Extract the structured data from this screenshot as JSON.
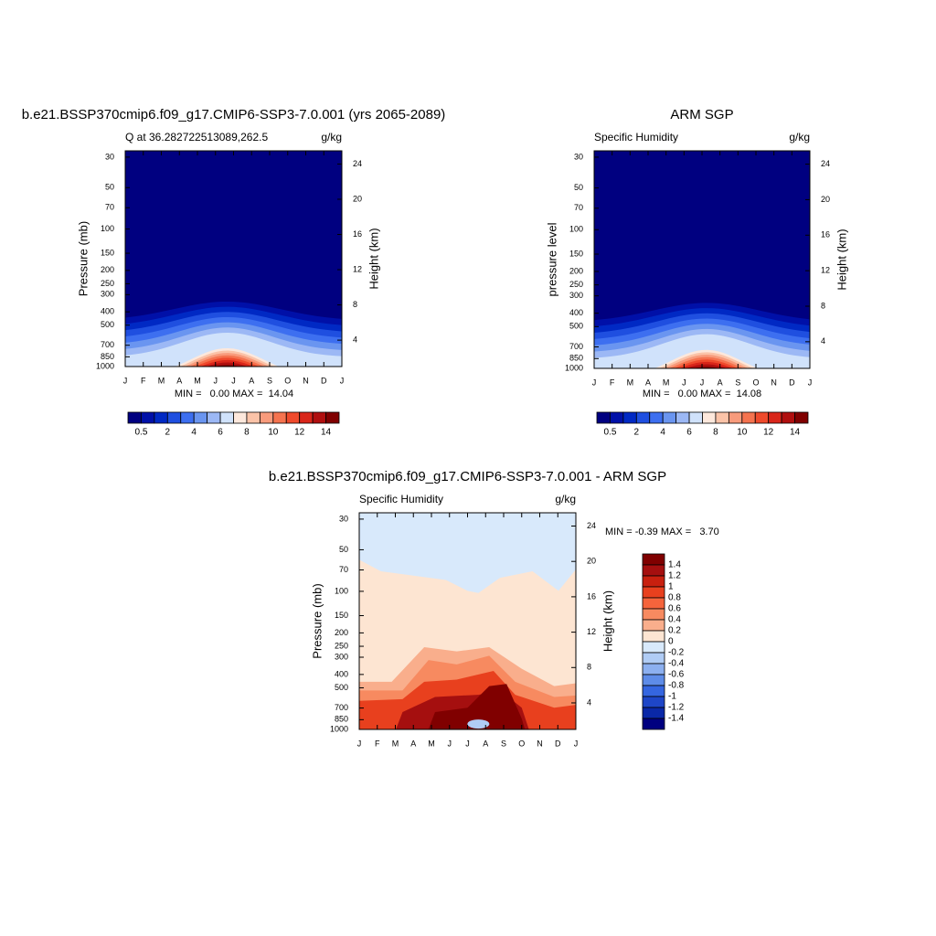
{
  "chart_data": [
    {
      "type": "contour",
      "title": "b.e21.BSSP370cmip6.f09_g17.CMIP6-SSP3-7.0.001 (yrs 2065-2089)",
      "left_string": "Q at 36.282722513089,262.5",
      "right_string": "g/kg",
      "ylabel": "Pressure (mb)",
      "y2label": "Height (km)",
      "categories": [
        "J",
        "F",
        "M",
        "A",
        "M",
        "J",
        "J",
        "A",
        "S",
        "O",
        "N",
        "D",
        "J"
      ],
      "log_scale": true,
      "ylim": [
        1000,
        27
      ],
      "yticks": [
        30,
        50,
        70,
        100,
        150,
        200,
        250,
        300,
        400,
        500,
        700,
        850,
        1000
      ],
      "y2lim": [
        1,
        25.5
      ],
      "y2ticks": [
        4,
        8,
        12,
        16,
        20,
        24
      ],
      "min_max": "MIN =   0.00 MAX =  14.04",
      "colorbar": {
        "orientation": "horizontal",
        "colors": [
          "#000080",
          "#0010a8",
          "#0029c4",
          "#1f4fe0",
          "#3d6ff0",
          "#6a95f0",
          "#9cb8f5",
          "#d0e2fb",
          "#fde8dc",
          "#fbc3a8",
          "#f89b7c",
          "#f5734f",
          "#ef4a2c",
          "#d9261a",
          "#b00f0f",
          "#800000"
        ],
        "ticks": [
          0.5,
          2,
          4,
          6,
          8,
          10,
          12,
          14
        ]
      }
    },
    {
      "type": "contour",
      "title": "ARM SGP",
      "left_string": "Specific Humidity",
      "right_string": "g/kg",
      "ylabel": "pressure level",
      "y2label": "Height (km)",
      "categories": [
        "J",
        "F",
        "M",
        "A",
        "M",
        "J",
        "J",
        "A",
        "S",
        "O",
        "N",
        "D",
        "J"
      ],
      "log_scale": true,
      "ylim": [
        1000,
        27
      ],
      "yticks": [
        30,
        50,
        70,
        100,
        150,
        200,
        250,
        300,
        400,
        500,
        700,
        850,
        1000
      ],
      "y2lim": [
        1,
        25.5
      ],
      "y2ticks": [
        4,
        8,
        12,
        16,
        20,
        24
      ],
      "min_max": "MIN =   0.00 MAX =  14.08",
      "colorbar": {
        "orientation": "horizontal",
        "colors": [
          "#000080",
          "#0010a8",
          "#0029c4",
          "#1f4fe0",
          "#3d6ff0",
          "#6a95f0",
          "#9cb8f5",
          "#d0e2fb",
          "#fde8dc",
          "#fbc3a8",
          "#f89b7c",
          "#f5734f",
          "#ef4a2c",
          "#d9261a",
          "#b00f0f",
          "#800000"
        ],
        "ticks": [
          0.5,
          2,
          4,
          6,
          8,
          10,
          12,
          14
        ]
      }
    },
    {
      "type": "contour",
      "title": "b.e21.BSSP370cmip6.f09_g17.CMIP6-SSP3-7.0.001 - ARM SGP",
      "left_string": "Specific Humidity",
      "right_string": "g/kg",
      "ylabel": "Pressure (mb)",
      "y2label": "Height (km)",
      "categories": [
        "J",
        "F",
        "M",
        "A",
        "M",
        "J",
        "J",
        "A",
        "S",
        "O",
        "N",
        "D",
        "J"
      ],
      "log_scale": true,
      "ylim": [
        1000,
        27
      ],
      "yticks": [
        30,
        50,
        70,
        100,
        150,
        200,
        250,
        300,
        400,
        500,
        700,
        850,
        1000
      ],
      "y2lim": [
        1,
        25.5
      ],
      "y2ticks": [
        4,
        8,
        12,
        16,
        20,
        24
      ],
      "min_max": "MIN = -0.39 MAX =   3.70",
      "colorbar": {
        "orientation": "vertical",
        "colors": [
          "#800000",
          "#a50f0f",
          "#c8200f",
          "#e8401e",
          "#f5643c",
          "#f78a60",
          "#f9ae8c",
          "#fde5d2",
          "#d8e9fb",
          "#b0ccf5",
          "#8cb0f0",
          "#5e8ce8",
          "#3566e0",
          "#1e46c8",
          "#0a28a8",
          "#000080"
        ],
        "ticks": [
          1.4,
          1.2,
          1,
          0.8,
          0.6,
          0.4,
          0.2,
          0,
          -0.2,
          -0.4,
          -0.6,
          -0.8,
          -1,
          -1.2,
          -1.4
        ]
      }
    }
  ]
}
